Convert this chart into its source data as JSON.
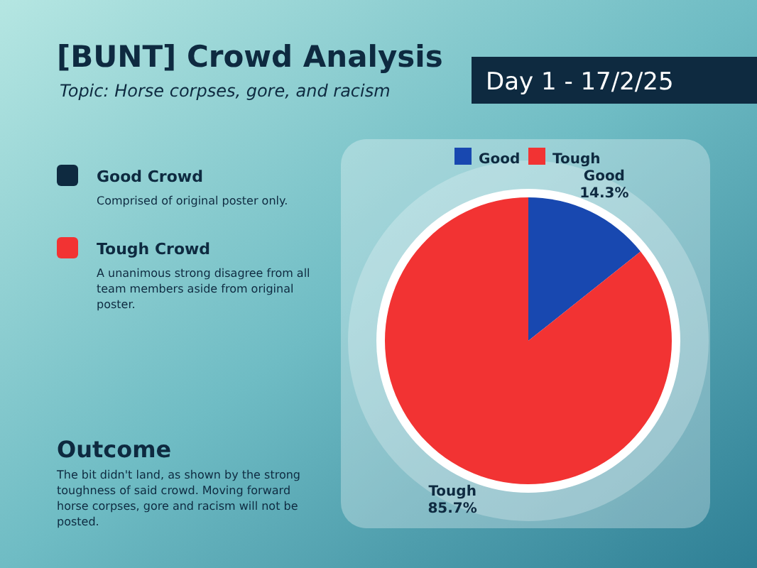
{
  "chart_data": {
    "type": "pie",
    "title": "[BUNT] Crowd Analysis",
    "subtitle": "Topic: Horse corpses, gore, and racism",
    "categories": [
      "Good",
      "Tough"
    ],
    "values": [
      14.3,
      85.7
    ],
    "colors": [
      "#1848b0",
      "#f23333"
    ],
    "value_labels": [
      "14.3%",
      "85.7%"
    ],
    "legend": "top",
    "annotations": [
      "Day 1 - 17/2/25",
      "Good Crowd",
      "Comprised of original poster only.",
      "Tough Crowd",
      "A unanimous strong disagree from all team members aside from original poster.",
      "Outcome",
      "The bit didn't land, as shown by the strong toughness of said crowd. Moving forward horse corpses, gore and racism will not be posted."
    ]
  }
}
